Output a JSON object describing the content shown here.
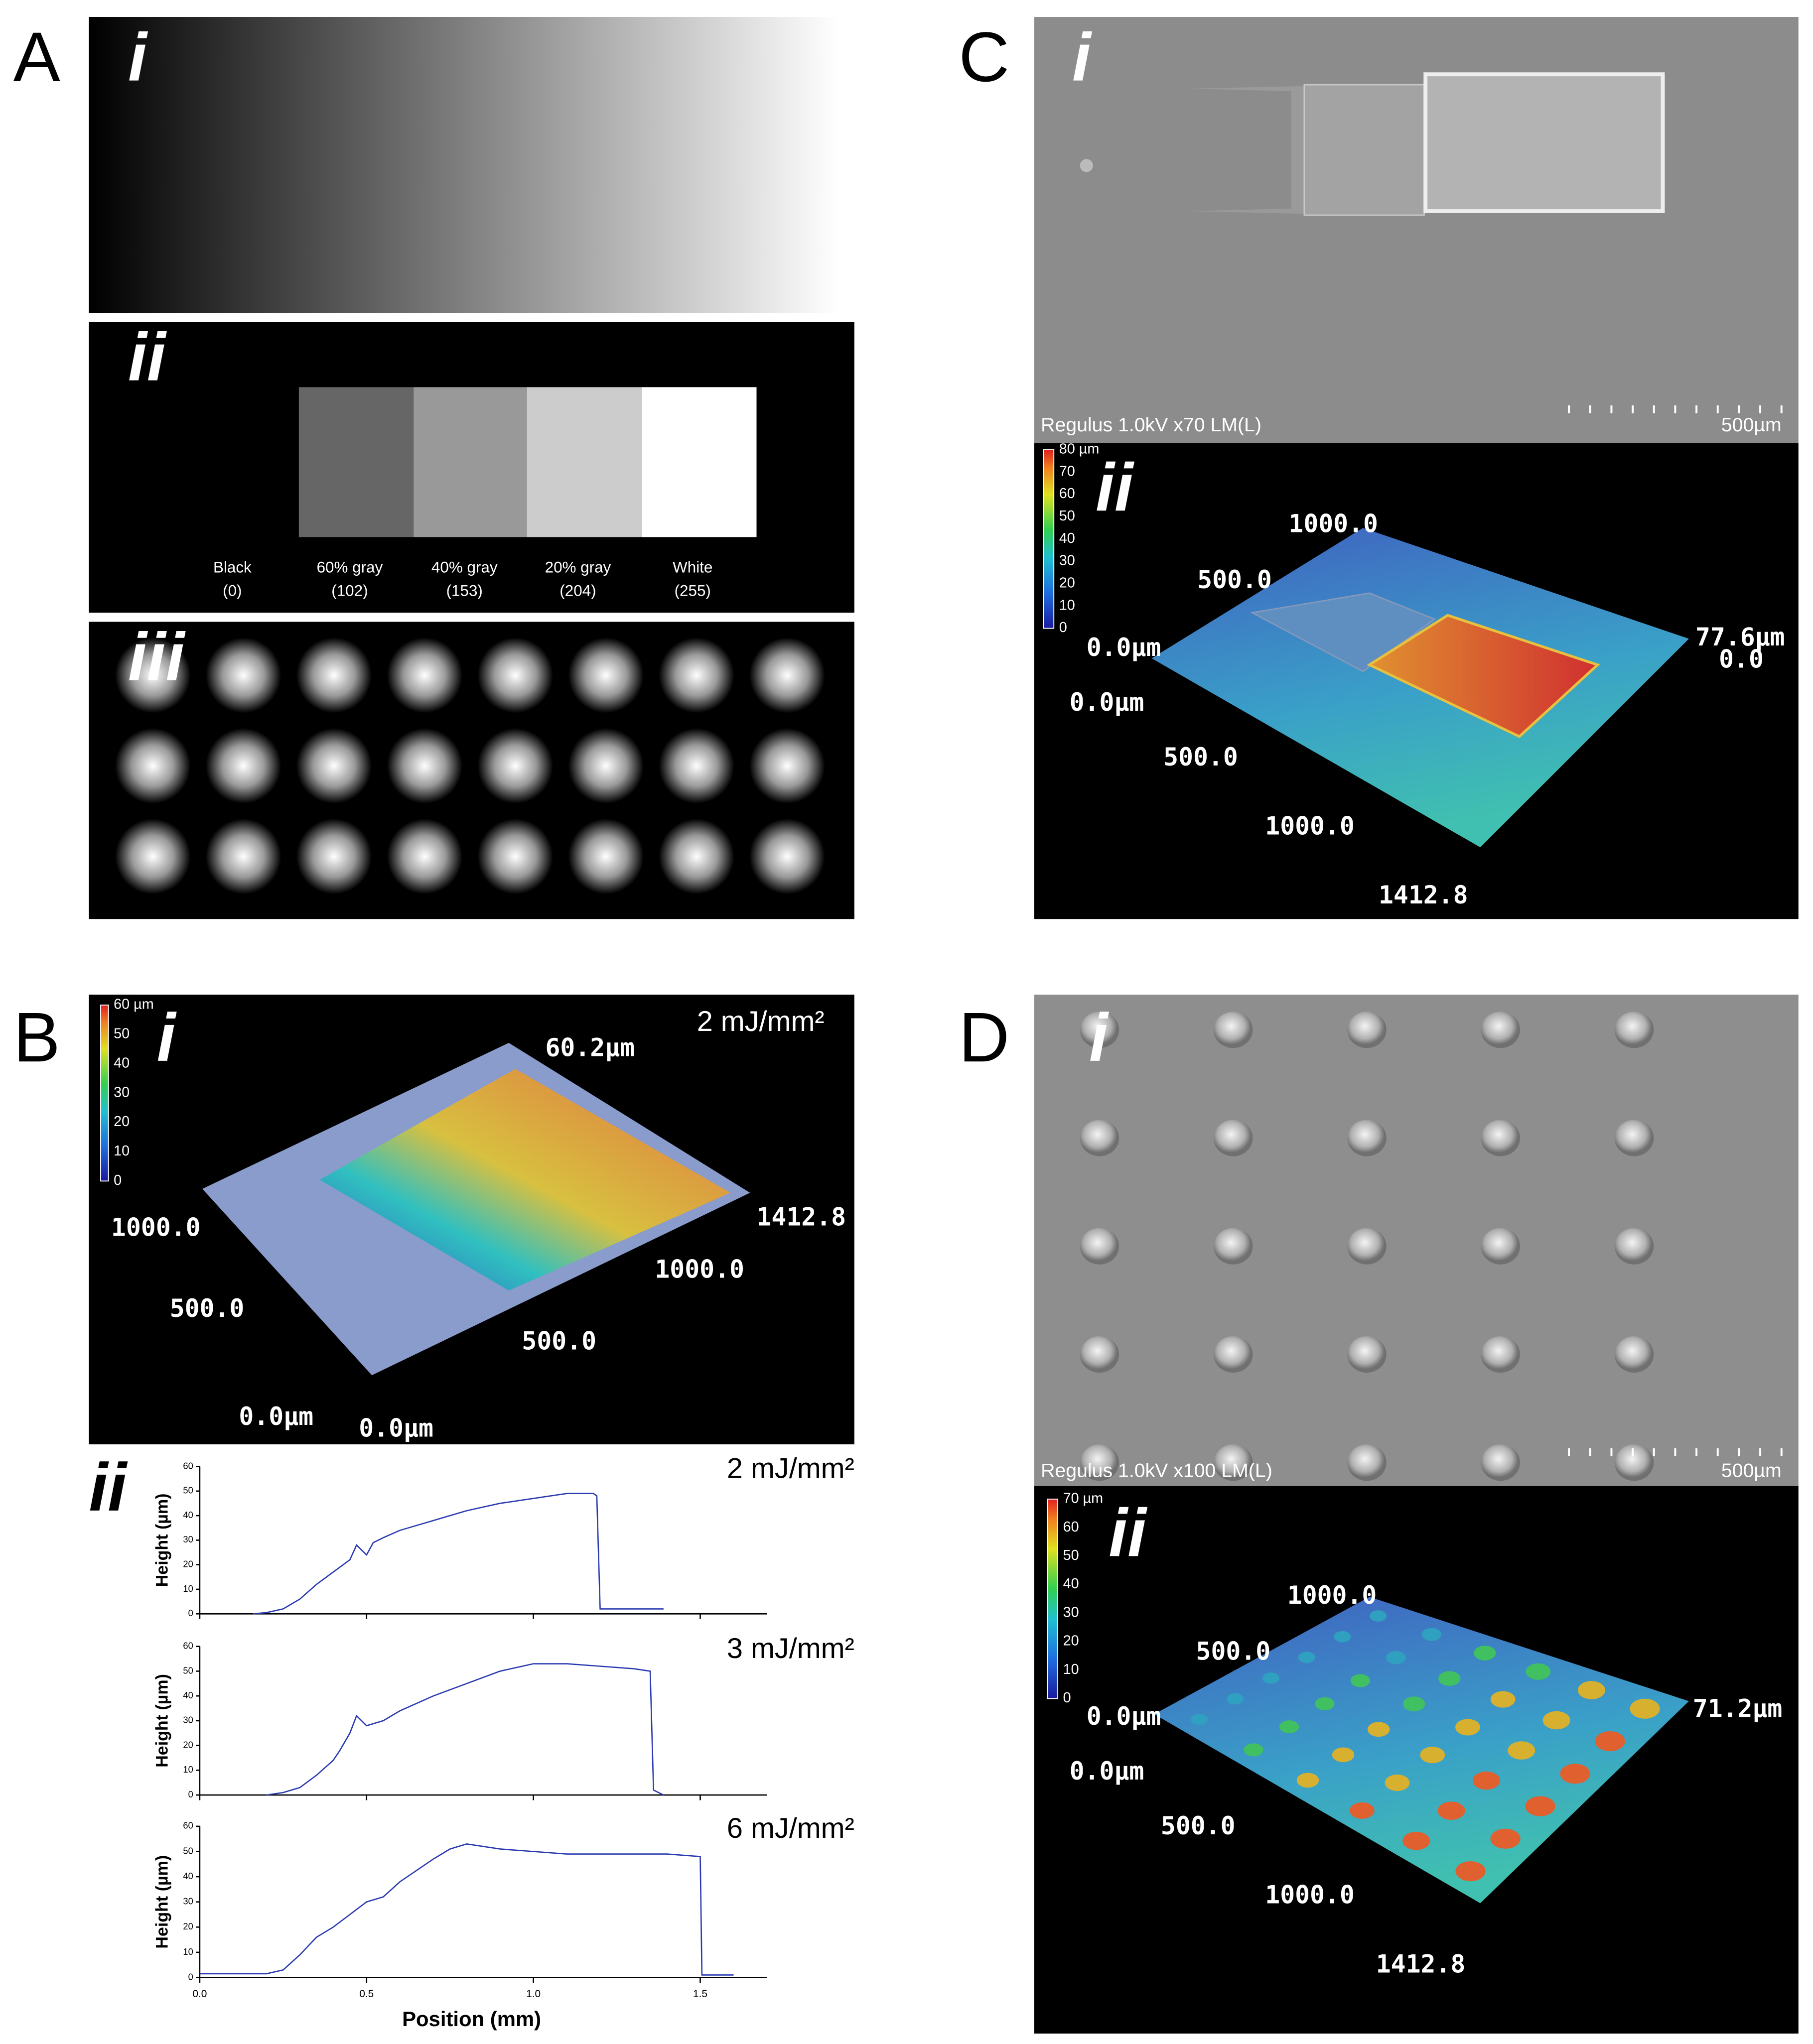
{
  "panels": {
    "A": {
      "label": "A",
      "i": "i",
      "ii": "ii",
      "iii": "iii",
      "swatches": [
        {
          "name": "Black",
          "code": "(0)"
        },
        {
          "name": "60% gray",
          "code": "(102)"
        },
        {
          "name": "40% gray",
          "code": "(153)"
        },
        {
          "name": "20% gray",
          "code": "(204)"
        },
        {
          "name": "White",
          "code": "(255)"
        }
      ]
    },
    "B": {
      "label": "B",
      "i": "i",
      "ii": "ii",
      "fluence": "2 mJ/mm²",
      "colorbar": [
        "60 µm",
        "50",
        "40",
        "30",
        "20",
        "10",
        "0"
      ],
      "axis_labels": [
        "60.2µm",
        "1412.8",
        "1000.0",
        "500.0",
        "0.0µm",
        "1000.0",
        "500.0",
        "0.0µm"
      ]
    },
    "C": {
      "label": "C",
      "i": "i",
      "ii": "ii",
      "sem_info": "Regulus 1.0kV x70 LM(L)",
      "scale_bar": "500µm",
      "colorbar": [
        "80 µm",
        "70",
        "60",
        "50",
        "40",
        "30",
        "20",
        "10",
        "0"
      ],
      "axis_labels": [
        "1000.0",
        "500.0",
        "0.0µm",
        "77.6µm",
        "0.0",
        "0.0µm",
        "500.0",
        "1000.0",
        "1412.8"
      ]
    },
    "D": {
      "label": "D",
      "i": "i",
      "ii": "ii",
      "sem_info": "Regulus 1.0kV x100 LM(L)",
      "scale_bar": "500µm",
      "colorbar": [
        "70 µm",
        "60",
        "50",
        "40",
        "30",
        "20",
        "10",
        "0"
      ],
      "axis_labels": [
        "1000.0",
        "500.0",
        "0.0µm",
        "71.2µm",
        "0.0µm",
        "500.0",
        "1000.0",
        "1412.8"
      ]
    }
  },
  "chart_data": [
    {
      "type": "line",
      "title": "2 mJ/mm²",
      "y_label": "Height (µm)",
      "color": "#2a3bb0",
      "xlim": [
        0,
        1.7
      ],
      "ylim": [
        0,
        60
      ],
      "xticks": [
        0,
        0.5,
        1,
        1.5
      ],
      "yticks": [
        0,
        10,
        20,
        30,
        40,
        50,
        60
      ],
      "x": [
        0.16,
        0.2,
        0.25,
        0.3,
        0.35,
        0.4,
        0.45,
        0.47,
        0.5,
        0.52,
        0.55,
        0.6,
        0.7,
        0.8,
        0.9,
        1.0,
        1.1,
        1.18,
        1.19,
        1.2,
        1.3,
        1.39
      ],
      "values": [
        0,
        0.5,
        2,
        6,
        12,
        17,
        22,
        28,
        24,
        29,
        31,
        34,
        38,
        42,
        45,
        47,
        49,
        49,
        48,
        2,
        2,
        2
      ]
    },
    {
      "type": "line",
      "title": "3 mJ/mm²",
      "y_label": "Height (µm)",
      "color": "#2a3bb0",
      "xlim": [
        0,
        1.7
      ],
      "ylim": [
        0,
        60
      ],
      "xticks": [
        0,
        0.5,
        1,
        1.5
      ],
      "yticks": [
        0,
        10,
        20,
        30,
        40,
        50,
        60
      ],
      "x": [
        0.2,
        0.25,
        0.3,
        0.35,
        0.4,
        0.42,
        0.45,
        0.47,
        0.5,
        0.55,
        0.6,
        0.7,
        0.8,
        0.9,
        1.0,
        1.1,
        1.2,
        1.3,
        1.35,
        1.36,
        1.39
      ],
      "values": [
        0,
        1,
        3,
        8,
        14,
        18,
        25,
        32,
        28,
        30,
        34,
        40,
        45,
        50,
        53,
        53,
        52,
        51,
        50,
        2,
        0
      ]
    },
    {
      "type": "line",
      "title": "6 mJ/mm²",
      "y_label": "Height (µm)",
      "x_label": "Position (mm)",
      "color": "#2a3bb0",
      "xlim": [
        0,
        1.7
      ],
      "ylim": [
        0,
        60
      ],
      "xticks": [
        {
          "value": 0,
          "label": "0.0"
        },
        {
          "value": 0.5,
          "label": "0.5"
        },
        {
          "value": 1,
          "label": "1.0"
        },
        {
          "value": 1.5,
          "label": "1.5"
        }
      ],
      "yticks": [
        0,
        10,
        20,
        30,
        40,
        50,
        60
      ],
      "x": [
        0,
        0.1,
        0.2,
        0.25,
        0.3,
        0.35,
        0.4,
        0.45,
        0.5,
        0.55,
        0.6,
        0.7,
        0.75,
        0.8,
        0.9,
        1.0,
        1.1,
        1.2,
        1.3,
        1.4,
        1.5,
        1.505,
        1.6
      ],
      "values": [
        1.5,
        1.5,
        1.5,
        3,
        9,
        16,
        20,
        25,
        30,
        32,
        38,
        47,
        51,
        53,
        51,
        50,
        49,
        49,
        49,
        49,
        48,
        1,
        1
      ]
    }
  ]
}
